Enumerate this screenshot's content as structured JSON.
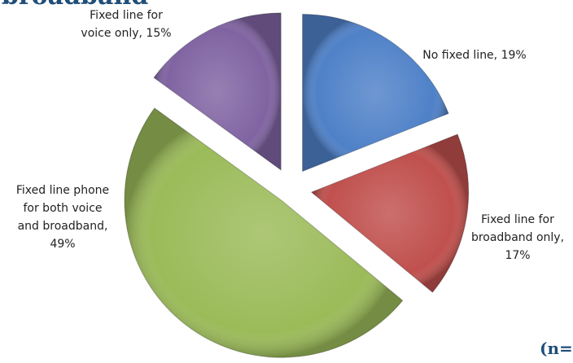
{
  "header": {
    "title_fragment": "l broadband",
    "sample_note_fragment": "(n="
  },
  "chart_data": {
    "type": "pie",
    "title": "",
    "slices": [
      {
        "label_lines": [
          "No fixed line, 19%"
        ],
        "value": 19,
        "color": "#4f81c8"
      },
      {
        "label_lines": [
          "Fixed line for",
          "broadband only,",
          "17%"
        ],
        "value": 17,
        "color": "#c0504d"
      },
      {
        "label_lines": [
          "Fixed line phone",
          "for both voice",
          "and broadband,",
          "49%"
        ],
        "value": 49,
        "color": "#9bbb59"
      },
      {
        "label_lines": [
          "Fixed line for",
          "voice only, 15%"
        ],
        "value": 15,
        "color": "#8064a2"
      }
    ]
  }
}
